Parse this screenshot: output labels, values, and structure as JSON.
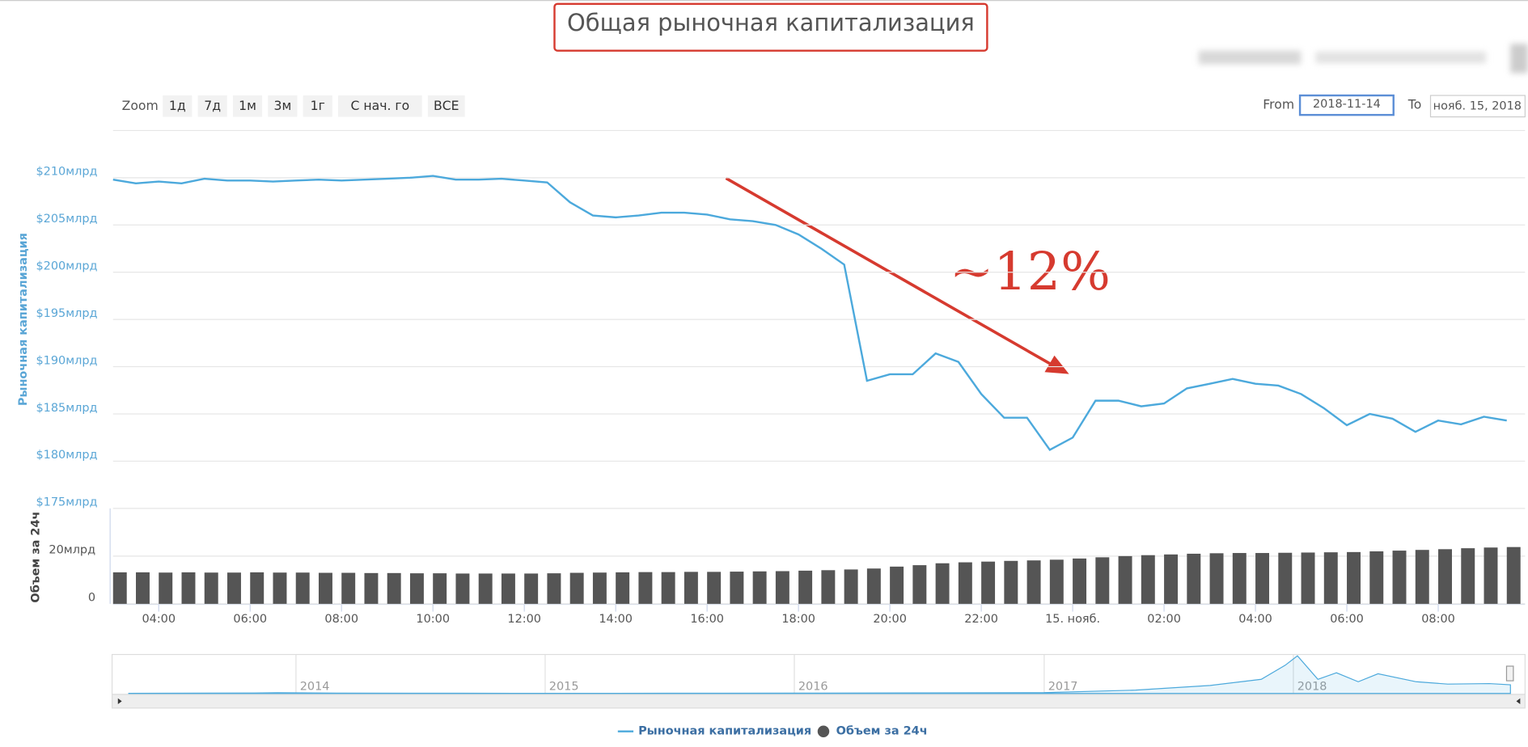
{
  "range_selector": {
    "zoom_label": "Zoom",
    "zoom_buttons": [
      "1д",
      "7д",
      "1м",
      "3м",
      "1г",
      "С нач. го",
      "ВСЕ"
    ],
    "from_label": "From",
    "from_value": "2018-11-14",
    "to_label": "To",
    "to_value": "нояб. 15, 2018"
  },
  "chart_data": [
    {
      "type": "line",
      "title": "Общая рыночная капитализация",
      "annotation": "~12%",
      "ylabel": "Рыночная капитализация",
      "x": [
        "2018-11-14T03:00",
        "2018-11-14T03:30",
        "2018-11-14T04:00",
        "2018-11-14T04:30",
        "2018-11-14T05:00",
        "2018-11-14T05:30",
        "2018-11-14T06:00",
        "2018-11-14T06:30",
        "2018-11-14T07:00",
        "2018-11-14T07:30",
        "2018-11-14T08:00",
        "2018-11-14T08:30",
        "2018-11-14T09:00",
        "2018-11-14T09:30",
        "2018-11-14T10:00",
        "2018-11-14T10:30",
        "2018-11-14T11:00",
        "2018-11-14T11:30",
        "2018-11-14T12:00",
        "2018-11-14T12:30",
        "2018-11-14T13:00",
        "2018-11-14T13:30",
        "2018-11-14T14:00",
        "2018-11-14T14:30",
        "2018-11-14T15:00",
        "2018-11-14T15:30",
        "2018-11-14T16:00",
        "2018-11-14T16:30",
        "2018-11-14T17:00",
        "2018-11-14T17:30",
        "2018-11-14T18:00",
        "2018-11-14T18:30",
        "2018-11-14T19:00",
        "2018-11-14T19:30",
        "2018-11-14T20:00",
        "2018-11-14T20:30",
        "2018-11-14T21:00",
        "2018-11-14T21:30",
        "2018-11-14T22:00",
        "2018-11-14T22:30",
        "2018-11-14T23:00",
        "2018-11-14T23:30",
        "2018-11-15T00:00",
        "2018-11-15T00:30",
        "2018-11-15T01:00",
        "2018-11-15T01:30",
        "2018-11-15T02:00",
        "2018-11-15T02:30",
        "2018-11-15T03:00",
        "2018-11-15T03:30",
        "2018-11-15T04:00",
        "2018-11-15T04:30",
        "2018-11-15T05:00",
        "2018-11-15T05:30",
        "2018-11-15T06:00",
        "2018-11-15T06:30",
        "2018-11-15T07:00",
        "2018-11-15T07:30",
        "2018-11-15T08:00",
        "2018-11-15T08:30",
        "2018-11-15T09:00",
        "2018-11-15T09:30"
      ],
      "series": [
        {
          "name": "Рыночная капитализация",
          "color": "#4ca9dc",
          "values": [
            209.8,
            209.4,
            209.6,
            209.4,
            209.9,
            209.7,
            209.7,
            209.6,
            209.7,
            209.8,
            209.7,
            209.8,
            209.9,
            210.0,
            210.2,
            209.8,
            209.8,
            209.9,
            209.7,
            209.5,
            207.4,
            206.0,
            205.8,
            206.0,
            206.3,
            206.3,
            206.1,
            205.6,
            205.4,
            205.0,
            204.0,
            202.5,
            200.8,
            188.5,
            189.2,
            189.2,
            191.4,
            190.5,
            187.1,
            184.6,
            184.6,
            181.2,
            182.5,
            186.4,
            186.4,
            185.8,
            186.1,
            187.7,
            188.2,
            188.7,
            188.2,
            188.0,
            187.1,
            185.6,
            183.8,
            185.0,
            184.5,
            183.1,
            184.3,
            183.9,
            184.7,
            184.3
          ]
        }
      ],
      "xlim": [
        "2018-11-14T03:00",
        "2018-11-15T09:54"
      ],
      "xticks": [
        {
          "value": "2018-11-14T04:00",
          "label": "04:00"
        },
        {
          "value": "2018-11-14T06:00",
          "label": "06:00"
        },
        {
          "value": "2018-11-14T08:00",
          "label": "08:00"
        },
        {
          "value": "2018-11-14T10:00",
          "label": "10:00"
        },
        {
          "value": "2018-11-14T12:00",
          "label": "12:00"
        },
        {
          "value": "2018-11-14T14:00",
          "label": "14:00"
        },
        {
          "value": "2018-11-14T16:00",
          "label": "16:00"
        },
        {
          "value": "2018-11-14T18:00",
          "label": "18:00"
        },
        {
          "value": "2018-11-14T20:00",
          "label": "20:00"
        },
        {
          "value": "2018-11-14T22:00",
          "label": "22:00"
        },
        {
          "value": "2018-11-15T00:00",
          "label": "15. нояб."
        },
        {
          "value": "2018-11-15T02:00",
          "label": "02:00"
        },
        {
          "value": "2018-11-15T04:00",
          "label": "04:00"
        },
        {
          "value": "2018-11-15T06:00",
          "label": "06:00"
        },
        {
          "value": "2018-11-15T08:00",
          "label": "08:00"
        }
      ],
      "ylim": [
        175,
        215
      ],
      "yticks": [
        {
          "value": 175,
          "label": "$175млрд"
        },
        {
          "value": 180,
          "label": "$180млрд"
        },
        {
          "value": 185,
          "label": "$185млрд"
        },
        {
          "value": 190,
          "label": "$190млрд"
        },
        {
          "value": 195,
          "label": "$195млрд"
        },
        {
          "value": 200,
          "label": "$200млрд"
        },
        {
          "value": 205,
          "label": "$205млрд"
        },
        {
          "value": 210,
          "label": "$210млрд"
        }
      ],
      "grid": true
    },
    {
      "type": "bar",
      "ylabel": "Объем за 24ч",
      "x": [
        "2018-11-14T03:00",
        "2018-11-14T03:30",
        "2018-11-14T04:00",
        "2018-11-14T04:30",
        "2018-11-14T05:00",
        "2018-11-14T05:30",
        "2018-11-14T06:00",
        "2018-11-14T06:30",
        "2018-11-14T07:00",
        "2018-11-14T07:30",
        "2018-11-14T08:00",
        "2018-11-14T08:30",
        "2018-11-14T09:00",
        "2018-11-14T09:30",
        "2018-11-14T10:00",
        "2018-11-14T10:30",
        "2018-11-14T11:00",
        "2018-11-14T11:30",
        "2018-11-14T12:00",
        "2018-11-14T12:30",
        "2018-11-14T13:00",
        "2018-11-14T13:30",
        "2018-11-14T14:00",
        "2018-11-14T14:30",
        "2018-11-14T15:00",
        "2018-11-14T15:30",
        "2018-11-14T16:00",
        "2018-11-14T16:30",
        "2018-11-14T17:00",
        "2018-11-14T17:30",
        "2018-11-14T18:00",
        "2018-11-14T18:30",
        "2018-11-14T19:00",
        "2018-11-14T19:30",
        "2018-11-14T20:00",
        "2018-11-14T20:30",
        "2018-11-14T21:00",
        "2018-11-14T21:30",
        "2018-11-14T22:00",
        "2018-11-14T22:30",
        "2018-11-14T23:00",
        "2018-11-14T23:30",
        "2018-11-15T00:00",
        "2018-11-15T00:30",
        "2018-11-15T01:00",
        "2018-11-15T01:30",
        "2018-11-15T02:00",
        "2018-11-15T02:30",
        "2018-11-15T03:00",
        "2018-11-15T03:30",
        "2018-11-15T04:00",
        "2018-11-15T04:30",
        "2018-11-15T05:00",
        "2018-11-15T05:30",
        "2018-11-15T06:00",
        "2018-11-15T06:30",
        "2018-11-15T07:00",
        "2018-11-15T07:30",
        "2018-11-15T08:00",
        "2018-11-15T08:30",
        "2018-11-15T09:00",
        "2018-11-15T09:30"
      ],
      "series": [
        {
          "name": "Объем за 24ч",
          "color": "#555555",
          "values": [
            13.2,
            13.2,
            13.1,
            13.2,
            13.1,
            13.1,
            13.2,
            13.1,
            13.1,
            13.0,
            13.0,
            12.9,
            12.9,
            12.8,
            12.8,
            12.7,
            12.7,
            12.7,
            12.7,
            12.8,
            13.0,
            13.1,
            13.2,
            13.3,
            13.3,
            13.4,
            13.4,
            13.5,
            13.6,
            13.7,
            13.9,
            14.1,
            14.4,
            14.8,
            15.6,
            16.2,
            17.0,
            17.4,
            17.7,
            18.0,
            18.2,
            18.5,
            19.0,
            19.5,
            20.0,
            20.4,
            20.7,
            21.0,
            21.2,
            21.3,
            21.3,
            21.4,
            21.5,
            21.6,
            21.7,
            22.0,
            22.3,
            22.6,
            22.9,
            23.3,
            23.6,
            23.8
          ]
        }
      ],
      "xlim": [
        "2018-11-14T03:00",
        "2018-11-15T09:54"
      ],
      "ylim": [
        0,
        40
      ],
      "yticks": [
        0,
        {
          "value": 20,
          "label": "20млрд"
        }
      ],
      "grid": true
    },
    {
      "type": "area",
      "color": "#4ca9dc",
      "x": [
        "2013-05-01",
        "2013-11-01",
        "2013-12-05",
        "2014-03-01",
        "2014-09-01",
        "2015-01-15",
        "2015-07-01",
        "2016-01-01",
        "2016-07-01",
        "2017-01-01",
        "2017-05-15",
        "2017-09-01",
        "2017-11-15",
        "2017-12-20",
        "2018-01-07",
        "2018-02-06",
        "2018-03-05",
        "2018-04-06",
        "2018-05-05",
        "2018-06-30",
        "2018-08-15",
        "2018-10-15",
        "2018-11-15"
      ],
      "values": [
        1.5,
        8,
        15,
        7,
        5,
        3,
        4,
        7,
        10,
        17,
        70,
        170,
        300,
        600,
        800,
        300,
        440,
        250,
        420,
        250,
        200,
        210,
        184
      ],
      "xlim": [
        "2013-04-28",
        "2018-11-15"
      ],
      "xticks": [
        {
          "value": "2014-01-01",
          "label": "2014"
        },
        {
          "value": "2015-01-01",
          "label": "2015"
        },
        {
          "value": "2016-01-01",
          "label": "2016"
        },
        {
          "value": "2017-01-01",
          "label": "2017"
        },
        {
          "value": "2018-01-01",
          "label": "2018"
        }
      ],
      "ylim": [
        0,
        830
      ]
    }
  ]
}
